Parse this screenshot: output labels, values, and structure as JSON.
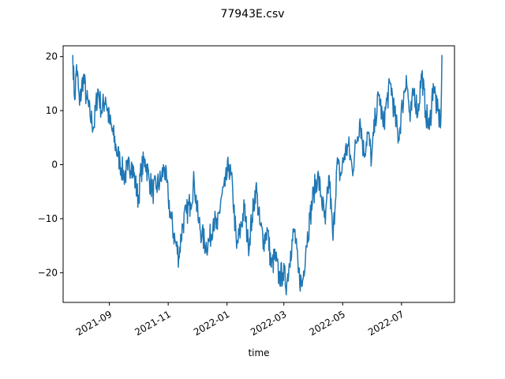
{
  "chart_data": {
    "type": "line",
    "title": "77943E.csv",
    "xlabel": "time",
    "ylabel": "",
    "grid": false,
    "legend": "none",
    "colors": {
      "line": "#1f77b4",
      "axes": "#000000",
      "background": "#ffffff"
    },
    "xlim": [
      "2021-07-15",
      "2022-08-25"
    ],
    "ylim": [
      -25.5,
      22
    ],
    "x_ticks": [
      "2021-09",
      "2021-11",
      "2022-01",
      "2022-03",
      "2022-05",
      "2022-07"
    ],
    "x_tick_dates": [
      "2021-09-01",
      "2021-11-01",
      "2022-01-01",
      "2022-03-01",
      "2022-05-01",
      "2022-07-01"
    ],
    "y_ticks": [
      20,
      10,
      0,
      -10,
      -20
    ],
    "series": [
      {
        "x": [
          "2021-07-25",
          "2021-07-27",
          "2021-07-29",
          "2021-08-01",
          "2021-08-05",
          "2021-08-08",
          "2021-08-12",
          "2021-08-16",
          "2021-08-20",
          "2021-08-24",
          "2021-08-28",
          "2021-09-01",
          "2021-09-05",
          "2021-09-08",
          "2021-09-12",
          "2021-09-16",
          "2021-09-20",
          "2021-09-24",
          "2021-09-28",
          "2021-10-01",
          "2021-10-04",
          "2021-10-08",
          "2021-10-12",
          "2021-10-16",
          "2021-10-20",
          "2021-10-24",
          "2021-10-28",
          "2021-11-01",
          "2021-11-04",
          "2021-11-08",
          "2021-11-12",
          "2021-11-16",
          "2021-11-20",
          "2021-11-24",
          "2021-11-28",
          "2021-12-02",
          "2021-12-06",
          "2021-12-10",
          "2021-12-14",
          "2021-12-18",
          "2021-12-22",
          "2021-12-26",
          "2021-12-30",
          "2022-01-03",
          "2022-01-07",
          "2022-01-11",
          "2022-01-15",
          "2022-01-19",
          "2022-01-23",
          "2022-01-27",
          "2022-01-31",
          "2022-02-04",
          "2022-02-08",
          "2022-02-12",
          "2022-02-16",
          "2022-02-20",
          "2022-02-24",
          "2022-02-28",
          "2022-03-04",
          "2022-03-08",
          "2022-03-12",
          "2022-03-16",
          "2022-03-20",
          "2022-03-24",
          "2022-03-28",
          "2022-04-01",
          "2022-04-05",
          "2022-04-09",
          "2022-04-13",
          "2022-04-17",
          "2022-04-21",
          "2022-04-25",
          "2022-04-29",
          "2022-05-03",
          "2022-05-07",
          "2022-05-11",
          "2022-05-15",
          "2022-05-19",
          "2022-05-23",
          "2022-05-27",
          "2022-05-31",
          "2022-06-04",
          "2022-06-08",
          "2022-06-12",
          "2022-06-16",
          "2022-06-20",
          "2022-06-24",
          "2022-06-28",
          "2022-07-02",
          "2022-07-06",
          "2022-07-10",
          "2022-07-14",
          "2022-07-18",
          "2022-07-22",
          "2022-07-26",
          "2022-07-30",
          "2022-08-03",
          "2022-08-07",
          "2022-08-10",
          "2022-08-11",
          "2022-08-12"
        ],
        "y": [
          20.3,
          12.0,
          18.5,
          11.0,
          16.5,
          12.5,
          9.0,
          7.0,
          14.0,
          10.0,
          12.5,
          8.0,
          5.5,
          3.0,
          0.5,
          -2.0,
          -1.0,
          0.5,
          -3.5,
          -6.5,
          -1.0,
          1.0,
          -2.5,
          -5.0,
          -4.0,
          -3.0,
          -0.5,
          -6.0,
          -10.0,
          -14.0,
          -17.0,
          -11.0,
          -9.0,
          -7.0,
          -3.0,
          -10.0,
          -13.0,
          -15.0,
          -14.0,
          -10.0,
          -12.0,
          -6.0,
          -4.0,
          0.0,
          -5.0,
          -15.5,
          -12.0,
          -8.0,
          -15.0,
          -10.0,
          -4.0,
          -11.0,
          -14.0,
          -12.0,
          -19.0,
          -17.0,
          -21.0,
          -20.0,
          -22.0,
          -16.0,
          -12.0,
          -20.0,
          -22.5,
          -15.0,
          -10.0,
          -5.0,
          -2.0,
          -6.0,
          -11.0,
          -2.0,
          -14.0,
          0.0,
          -2.0,
          2.0,
          3.5,
          -1.0,
          4.0,
          8.5,
          2.0,
          6.0,
          1.0,
          9.0,
          13.0,
          7.0,
          12.0,
          15.0,
          9.0,
          5.0,
          11.0,
          16.5,
          8.0,
          14.0,
          9.5,
          17.0,
          10.0,
          6.5,
          15.0,
          10.0,
          8.0,
          9.0,
          20.3
        ]
      }
    ]
  }
}
